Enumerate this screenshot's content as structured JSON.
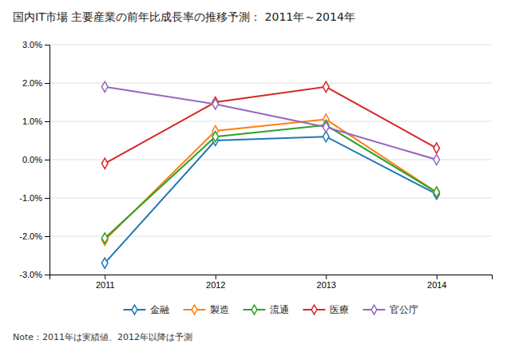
{
  "chart_data": {
    "type": "line",
    "title": "国内IT市場 主要産業の前年比成長率の推移予測：  2011年～2014年",
    "annotations": [
      "Note：2011年は実績値、2012年以降は予測"
    ],
    "x": [
      2011,
      2012,
      2013,
      2014
    ],
    "series": [
      {
        "name": "金融",
        "values": [
          -2.7,
          0.5,
          0.6,
          -0.9
        ]
      },
      {
        "name": "製造",
        "values": [
          -2.1,
          0.75,
          1.05,
          -0.85
        ]
      },
      {
        "name": "流通",
        "values": [
          -2.05,
          0.6,
          0.9,
          -0.85
        ]
      },
      {
        "name": "医療",
        "values": [
          -0.1,
          1.5,
          1.9,
          0.3
        ]
      },
      {
        "name": "官公庁",
        "values": [
          1.9,
          1.45,
          0.85,
          0.0
        ]
      }
    ],
    "xlim": [
      2010.5,
      2014.5
    ],
    "xticks": [
      2011,
      2012,
      2013,
      2014
    ],
    "ylim": [
      -3.0,
      3.0
    ],
    "yticks": [
      {
        "value": -3.0,
        "label": "-3.0%"
      },
      {
        "value": -2.0,
        "label": "-2.0%"
      },
      {
        "value": -1.0,
        "label": "-1.0%"
      },
      {
        "value": 0.0,
        "label": "0.0%"
      },
      {
        "value": 1.0,
        "label": "1.0%"
      },
      {
        "value": 2.0,
        "label": "2.0%"
      },
      {
        "value": 3.0,
        "label": "3.0%"
      }
    ],
    "marker": "diamond",
    "grid": true,
    "legend": "bottom"
  }
}
